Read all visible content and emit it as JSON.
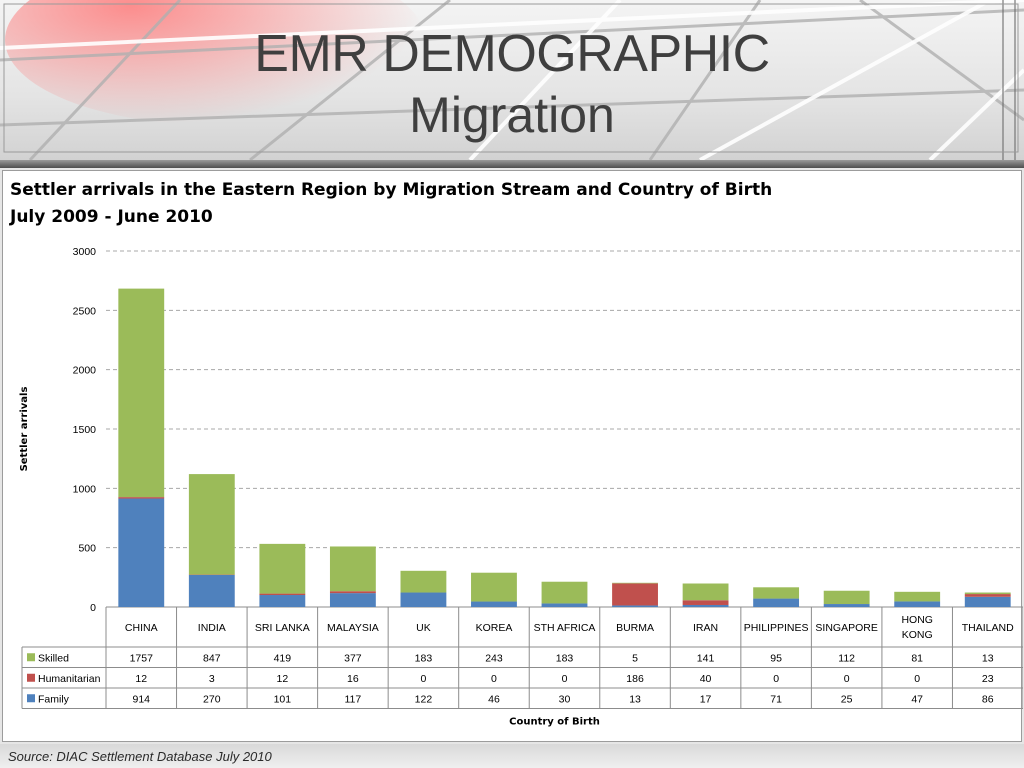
{
  "slide": {
    "title": "EMR DEMOGRAPHIC",
    "subtitle": "Migration",
    "source": "Source: DIAC Settlement Database July 2010"
  },
  "chart_data": {
    "type": "bar",
    "stacked": true,
    "title": "Settler arrivals in the Eastern Region by Migration Stream and Country of Birth",
    "subtitle": "July 2009 - June 2010",
    "xlabel": "Country of Birth",
    "ylabel": "Settler arrivals",
    "ylim": [
      0,
      3000
    ],
    "yticks": [
      0,
      500,
      1000,
      1500,
      2000,
      2500,
      3000
    ],
    "grid": true,
    "legend": "data-table-rows",
    "categories": [
      "CHINA",
      "INDIA",
      "SRI LANKA",
      "MALAYSIA",
      "UK",
      "KOREA",
      "STH AFRICA",
      "BURMA",
      "IRAN",
      "PHILIPPINES",
      "SINGAPORE",
      "HONG KONG",
      "THAILAND"
    ],
    "series": [
      {
        "name": "Family",
        "color": "#4f81bd",
        "values": [
          914,
          270,
          101,
          117,
          122,
          46,
          30,
          13,
          17,
          71,
          25,
          47,
          86
        ]
      },
      {
        "name": "Humanitarian",
        "color": "#c0504d",
        "values": [
          12,
          3,
          12,
          16,
          0,
          0,
          0,
          186,
          40,
          0,
          0,
          0,
          23
        ]
      },
      {
        "name": "Skilled",
        "color": "#9bbb59",
        "values": [
          1757,
          847,
          419,
          377,
          183,
          243,
          183,
          5,
          141,
          95,
          112,
          81,
          13
        ]
      }
    ],
    "table_row_order": [
      "Skilled",
      "Humanitarian",
      "Family"
    ]
  }
}
